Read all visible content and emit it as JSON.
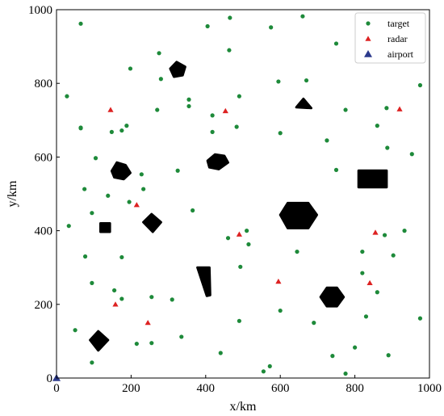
{
  "chart_data": {
    "type": "scatter",
    "xlabel": "x/km",
    "ylabel": "y/km",
    "xlim": [
      0,
      1000
    ],
    "ylim": [
      0,
      1000
    ],
    "xticks": [
      "0",
      "200",
      "400",
      "600",
      "800",
      "1000"
    ],
    "yticks": [
      "0",
      "200",
      "400",
      "600",
      "800",
      "1000"
    ],
    "grid": false,
    "legend_position": "top-right",
    "series": [
      {
        "name": "target",
        "marker": "circle",
        "color": "#1e8a3a",
        "points": [
          [
            65,
            962
          ],
          [
            405,
            955
          ],
          [
            465,
            978
          ],
          [
            575,
            952
          ],
          [
            660,
            982
          ],
          [
            750,
            908
          ],
          [
            28,
            765
          ],
          [
            198,
            840
          ],
          [
            275,
            882
          ],
          [
            463,
            890
          ],
          [
            280,
            812
          ],
          [
            355,
            756
          ],
          [
            355,
            738
          ],
          [
            418,
            713
          ],
          [
            490,
            765
          ],
          [
            595,
            805
          ],
          [
            670,
            808
          ],
          [
            775,
            728
          ],
          [
            885,
            733
          ],
          [
            975,
            795
          ],
          [
            65,
            680
          ],
          [
            65,
            678
          ],
          [
            148,
            668
          ],
          [
            175,
            672
          ],
          [
            188,
            685
          ],
          [
            270,
            728
          ],
          [
            418,
            668
          ],
          [
            483,
            682
          ],
          [
            600,
            665
          ],
          [
            860,
            685
          ],
          [
            725,
            645
          ],
          [
            887,
            625
          ],
          [
            953,
            608
          ],
          [
            105,
            597
          ],
          [
            228,
            553
          ],
          [
            325,
            563
          ],
          [
            750,
            565
          ],
          [
            75,
            513
          ],
          [
            138,
            495
          ],
          [
            233,
            513
          ],
          [
            195,
            478
          ],
          [
            365,
            455
          ],
          [
            33,
            413
          ],
          [
            95,
            448
          ],
          [
            510,
            400
          ],
          [
            515,
            363
          ],
          [
            460,
            380
          ],
          [
            493,
            302
          ],
          [
            645,
            343
          ],
          [
            77,
            330
          ],
          [
            175,
            328
          ],
          [
            820,
            343
          ],
          [
            820,
            285
          ],
          [
            880,
            388
          ],
          [
            933,
            400
          ],
          [
            903,
            333
          ],
          [
            95,
            258
          ],
          [
            155,
            238
          ],
          [
            175,
            215
          ],
          [
            255,
            220
          ],
          [
            310,
            213
          ],
          [
            600,
            183
          ],
          [
            690,
            150
          ],
          [
            830,
            167
          ],
          [
            860,
            233
          ],
          [
            490,
            155
          ],
          [
            335,
            112
          ],
          [
            215,
            93
          ],
          [
            255,
            95
          ],
          [
            50,
            130
          ],
          [
            95,
            42
          ],
          [
            440,
            68
          ],
          [
            555,
            18
          ],
          [
            572,
            32
          ],
          [
            740,
            60
          ],
          [
            775,
            12
          ],
          [
            800,
            83
          ],
          [
            890,
            62
          ],
          [
            975,
            162
          ]
        ]
      },
      {
        "name": "radar",
        "marker": "triangle",
        "color": "#dd2222",
        "points": [
          [
            145,
            728
          ],
          [
            453,
            725
          ],
          [
            920,
            730
          ],
          [
            215,
            470
          ],
          [
            490,
            390
          ],
          [
            855,
            395
          ],
          [
            595,
            262
          ],
          [
            840,
            258
          ],
          [
            158,
            200
          ],
          [
            245,
            150
          ]
        ]
      },
      {
        "name": "airport",
        "marker": "triangle",
        "color": "#2c3a8c",
        "points": [
          [
            0,
            0
          ]
        ]
      }
    ],
    "obstacles": [
      {
        "shape": "polygon",
        "points": [
          [
            305,
            840
          ],
          [
            322,
            858
          ],
          [
            345,
            845
          ],
          [
            338,
            822
          ],
          [
            315,
            818
          ]
        ]
      },
      {
        "shape": "polygon",
        "points": [
          [
            643,
            735
          ],
          [
            662,
            758
          ],
          [
            683,
            733
          ]
        ]
      },
      {
        "shape": "polygon",
        "points": [
          [
            148,
            562
          ],
          [
            162,
            585
          ],
          [
            185,
            578
          ],
          [
            198,
            557
          ],
          [
            180,
            540
          ],
          [
            155,
            545
          ]
        ]
      },
      {
        "shape": "polygon",
        "points": [
          [
            405,
            590
          ],
          [
            425,
            607
          ],
          [
            450,
            603
          ],
          [
            460,
            585
          ],
          [
            435,
            567
          ],
          [
            410,
            572
          ]
        ]
      },
      {
        "shape": "polygon",
        "points": [
          [
            810,
            563
          ],
          [
            885,
            563
          ],
          [
            885,
            518
          ],
          [
            810,
            518
          ]
        ]
      },
      {
        "shape": "polygon",
        "points": [
          [
            600,
            443
          ],
          [
            620,
            475
          ],
          [
            675,
            475
          ],
          [
            698,
            443
          ],
          [
            675,
            407
          ],
          [
            620,
            407
          ]
        ]
      },
      {
        "shape": "polygon",
        "points": [
          [
            233,
            423
          ],
          [
            255,
            445
          ],
          [
            280,
            423
          ],
          [
            258,
            397
          ]
        ]
      },
      {
        "shape": "polygon",
        "points": [
          [
            118,
            420
          ],
          [
            143,
            420
          ],
          [
            143,
            397
          ],
          [
            118,
            397
          ]
        ]
      },
      {
        "shape": "polygon",
        "points": [
          [
            378,
            300
          ],
          [
            410,
            300
          ],
          [
            412,
            225
          ],
          [
            403,
            223
          ]
        ]
      },
      {
        "shape": "polygon",
        "points": [
          [
            708,
            220
          ],
          [
            725,
            245
          ],
          [
            752,
            245
          ],
          [
            770,
            220
          ],
          [
            752,
            195
          ],
          [
            725,
            195
          ]
        ]
      },
      {
        "shape": "polygon",
        "points": [
          [
            90,
            103
          ],
          [
            112,
            127
          ],
          [
            138,
            103
          ],
          [
            112,
            75
          ]
        ]
      }
    ]
  }
}
